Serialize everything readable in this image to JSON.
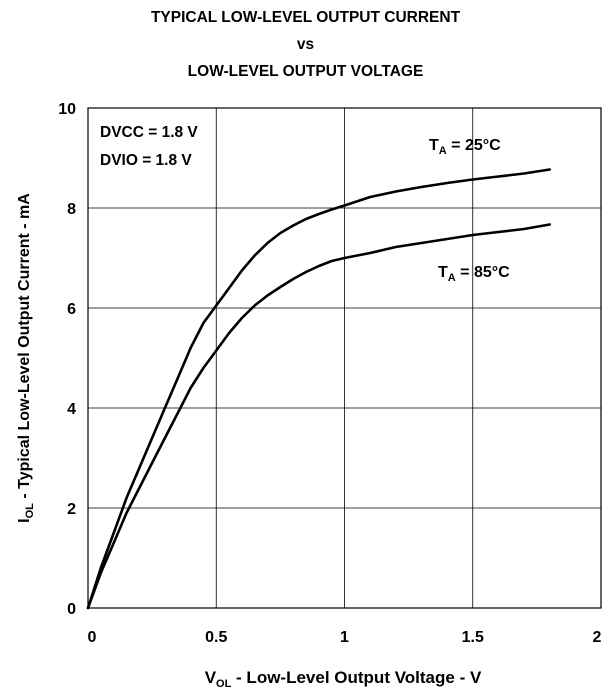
{
  "title_lines": [
    "TYPICAL LOW-LEVEL OUTPUT CURRENT",
    "vs",
    "LOW-LEVEL OUTPUT VOLTAGE"
  ],
  "chart_data": {
    "type": "line",
    "title": "TYPICAL LOW-LEVEL OUTPUT CURRENT vs LOW-LEVEL OUTPUT VOLTAGE",
    "xlabel": {
      "main": "V",
      "sub": "OL",
      "rest": " - Low-Level Output Voltage - V"
    },
    "ylabel": {
      "main": "I",
      "sub": "OL",
      "rest": " - Typical Low-Level Output Current - mA"
    },
    "xlim": [
      0,
      2
    ],
    "ylim": [
      0,
      10
    ],
    "xticks": [
      0,
      0.5,
      1,
      1.5,
      2
    ],
    "xtick_labels": [
      "0",
      "0.5",
      "1",
      "1.5",
      "2"
    ],
    "yticks": [
      0,
      2,
      4,
      6,
      8,
      10
    ],
    "ytick_labels": [
      "0",
      "2",
      "4",
      "6",
      "8",
      "10"
    ],
    "grid": true,
    "annotations": [
      "DVCC = 1.8 V",
      "DVIO = 1.8 V"
    ],
    "series": [
      {
        "name": {
          "main": "T",
          "sub": "A",
          "rest": " = 25°C"
        },
        "color": "#000000",
        "x": [
          0,
          0.05,
          0.1,
          0.15,
          0.2,
          0.25,
          0.3,
          0.35,
          0.4,
          0.45,
          0.5,
          0.55,
          0.6,
          0.65,
          0.7,
          0.75,
          0.8,
          0.85,
          0.9,
          0.95,
          1.0,
          1.1,
          1.2,
          1.3,
          1.4,
          1.5,
          1.6,
          1.7,
          1.8
        ],
        "y": [
          0,
          0.8,
          1.5,
          2.2,
          2.8,
          3.4,
          4.0,
          4.6,
          5.2,
          5.7,
          6.05,
          6.4,
          6.75,
          7.05,
          7.3,
          7.5,
          7.65,
          7.78,
          7.88,
          7.97,
          8.05,
          8.22,
          8.33,
          8.42,
          8.5,
          8.57,
          8.63,
          8.69,
          8.77
        ]
      },
      {
        "name": {
          "main": "T",
          "sub": "A",
          "rest": " = 85°C"
        },
        "color": "#000000",
        "x": [
          0,
          0.05,
          0.1,
          0.15,
          0.2,
          0.25,
          0.3,
          0.35,
          0.4,
          0.45,
          0.5,
          0.55,
          0.6,
          0.65,
          0.7,
          0.75,
          0.8,
          0.85,
          0.9,
          0.95,
          1.0,
          1.1,
          1.2,
          1.3,
          1.4,
          1.5,
          1.6,
          1.7,
          1.8
        ],
        "y": [
          0,
          0.7,
          1.3,
          1.9,
          2.4,
          2.9,
          3.4,
          3.9,
          4.4,
          4.8,
          5.15,
          5.5,
          5.8,
          6.05,
          6.25,
          6.42,
          6.58,
          6.72,
          6.84,
          6.94,
          7.0,
          7.1,
          7.22,
          7.3,
          7.38,
          7.46,
          7.52,
          7.58,
          7.67
        ]
      }
    ]
  }
}
